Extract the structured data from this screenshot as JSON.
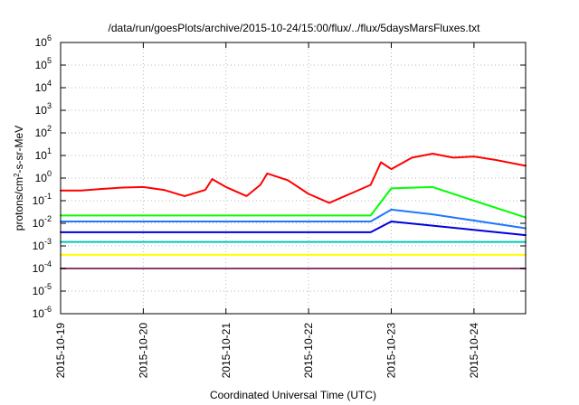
{
  "chart_data": {
    "type": "line",
    "title": "/data/run/goesPlots/archive/2015-10-24/15:00/flux/../flux/5daysMarsFluxes.txt",
    "xlabel": "Coordinated Universal Time (UTC)",
    "ylabel": "protons/cm²-s-sr-MeV",
    "y_scale": "log",
    "ylim_exponents": [
      -6,
      6
    ],
    "y_tick_labels": [
      {
        "base": "10",
        "exp": "-6"
      },
      {
        "base": "10",
        "exp": "-5"
      },
      {
        "base": "10",
        "exp": "-4"
      },
      {
        "base": "10",
        "exp": "-3"
      },
      {
        "base": "10",
        "exp": "-2"
      },
      {
        "base": "10",
        "exp": "-1"
      },
      {
        "base": "10",
        "exp": "0"
      },
      {
        "base": "10",
        "exp": "1"
      },
      {
        "base": "10",
        "exp": "2"
      },
      {
        "base": "10",
        "exp": "3"
      },
      {
        "base": "10",
        "exp": "4"
      },
      {
        "base": "10",
        "exp": "5"
      },
      {
        "base": "10",
        "exp": "6"
      }
    ],
    "xlim": [
      "2015-10-19",
      "2015-10-24 15:00"
    ],
    "x_tick_labels": [
      "2015-10-19",
      "2015-10-20",
      "2015-10-21",
      "2015-10-22",
      "2015-10-23",
      "2015-10-24"
    ],
    "grid": true,
    "legend": "none",
    "series": [
      {
        "color": "#ff0000",
        "values": [
          [
            "2015-10-19 00:00",
            0.28
          ],
          [
            "2015-10-19 06:00",
            0.28
          ],
          [
            "2015-10-19 12:00",
            0.33
          ],
          [
            "2015-10-19 18:00",
            0.38
          ],
          [
            "2015-10-20 00:00",
            0.4
          ],
          [
            "2015-10-20 06:00",
            0.3
          ],
          [
            "2015-10-20 12:00",
            0.16
          ],
          [
            "2015-10-20 18:00",
            0.3
          ],
          [
            "2015-10-20 20:00",
            0.9
          ],
          [
            "2015-10-21 00:00",
            0.4
          ],
          [
            "2015-10-21 06:00",
            0.16
          ],
          [
            "2015-10-21 10:00",
            0.5
          ],
          [
            "2015-10-21 12:00",
            1.6
          ],
          [
            "2015-10-21 18:00",
            0.8
          ],
          [
            "2015-10-22 00:00",
            0.2
          ],
          [
            "2015-10-22 06:00",
            0.08
          ],
          [
            "2015-10-22 12:00",
            0.2
          ],
          [
            "2015-10-22 18:00",
            0.5
          ],
          [
            "2015-10-22 21:00",
            5.0
          ],
          [
            "2015-10-23 00:00",
            2.5
          ],
          [
            "2015-10-23 06:00",
            8.0
          ],
          [
            "2015-10-23 12:00",
            12
          ],
          [
            "2015-10-23 18:00",
            8.0
          ],
          [
            "2015-10-24 00:00",
            9.0
          ],
          [
            "2015-10-24 06:00",
            6.5
          ],
          [
            "2015-10-24 15:00",
            3.5
          ]
        ]
      },
      {
        "color": "#00ff00",
        "values": [
          [
            "2015-10-19 00:00",
            0.022
          ],
          [
            "2015-10-22 18:00",
            0.022
          ],
          [
            "2015-10-23 00:00",
            0.35
          ],
          [
            "2015-10-23 12:00",
            0.4
          ],
          [
            "2015-10-24 00:00",
            0.1
          ],
          [
            "2015-10-24 15:00",
            0.018
          ]
        ]
      },
      {
        "color": "#1e78ff",
        "values": [
          [
            "2015-10-19 00:00",
            0.012
          ],
          [
            "2015-10-22 18:00",
            0.012
          ],
          [
            "2015-10-23 00:00",
            0.04
          ],
          [
            "2015-10-23 12:00",
            0.025
          ],
          [
            "2015-10-24 15:00",
            0.006
          ]
        ]
      },
      {
        "color": "#0000dd",
        "values": [
          [
            "2015-10-19 00:00",
            0.004
          ],
          [
            "2015-10-22 18:00",
            0.004
          ],
          [
            "2015-10-23 00:00",
            0.012
          ],
          [
            "2015-10-24 15:00",
            0.003
          ]
        ]
      },
      {
        "color": "#00c8b4",
        "values": [
          [
            "2015-10-19 00:00",
            0.0015
          ],
          [
            "2015-10-24 15:00",
            0.0015
          ]
        ]
      },
      {
        "color": "#ffff00",
        "values": [
          [
            "2015-10-19 00:00",
            0.0004
          ],
          [
            "2015-10-24 15:00",
            0.0004
          ]
        ]
      },
      {
        "color": "#8b3a6e",
        "values": [
          [
            "2015-10-19 00:00",
            0.0001
          ],
          [
            "2015-10-24 15:00",
            0.0001
          ]
        ]
      }
    ]
  }
}
